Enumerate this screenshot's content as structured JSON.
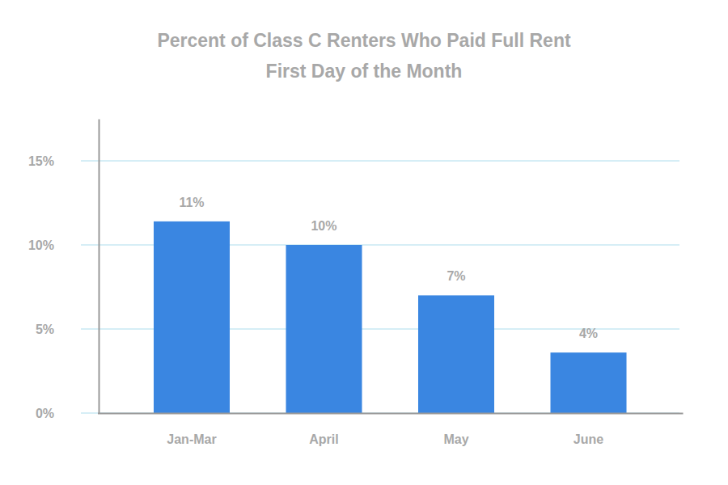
{
  "chart_data": {
    "type": "bar",
    "title": "Percent of Class C Renters Who Paid Full Rent\nFirst Day of the Month",
    "categories": [
      "Jan-Mar",
      "April",
      "May",
      "June"
    ],
    "values": [
      11.4,
      10,
      7,
      3.6
    ],
    "value_labels": [
      "11%",
      "10%",
      "7%",
      "4%"
    ],
    "color": "#3a86e1",
    "ylim": [
      0,
      17.5
    ],
    "yticks": [
      {
        "value": 0,
        "label": "0%"
      },
      {
        "value": 5,
        "label": "5%"
      },
      {
        "value": 10,
        "label": "10%"
      },
      {
        "value": 15,
        "label": "15%"
      }
    ],
    "grid": true,
    "data_labels": true
  }
}
